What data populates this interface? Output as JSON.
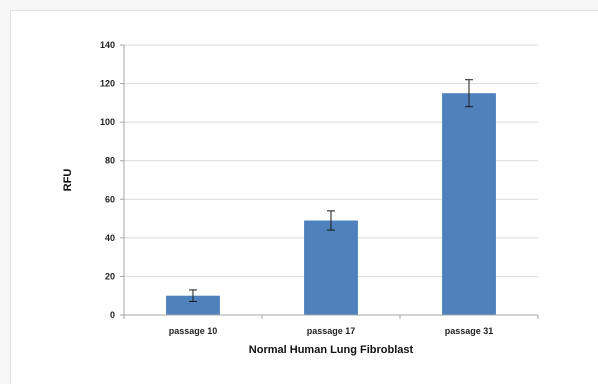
{
  "chart_data": {
    "type": "bar",
    "title": "",
    "xlabel": "Normal Human Lung Fibroblast",
    "ylabel": "RFU",
    "categories": [
      "passage 10",
      "passage 17",
      "passage 31"
    ],
    "series": [
      {
        "values": [
          10,
          49,
          115
        ],
        "error": [
          3,
          5,
          7
        ],
        "color": "#4f81bd"
      }
    ],
    "ylim": [
      0,
      140
    ],
    "yticks": [
      0,
      20,
      40,
      60,
      80,
      100,
      120,
      140
    ],
    "ytick_labels": [
      "0",
      "20",
      "40",
      "60",
      "80",
      "100",
      "120",
      "140"
    ],
    "grid": "horizontal",
    "legend": "none"
  },
  "colors": {
    "bar": "#4f81bd",
    "gridline": "#d9d9d9",
    "axis": "#a6a6a6",
    "error_bar": "#1a1a1a"
  }
}
